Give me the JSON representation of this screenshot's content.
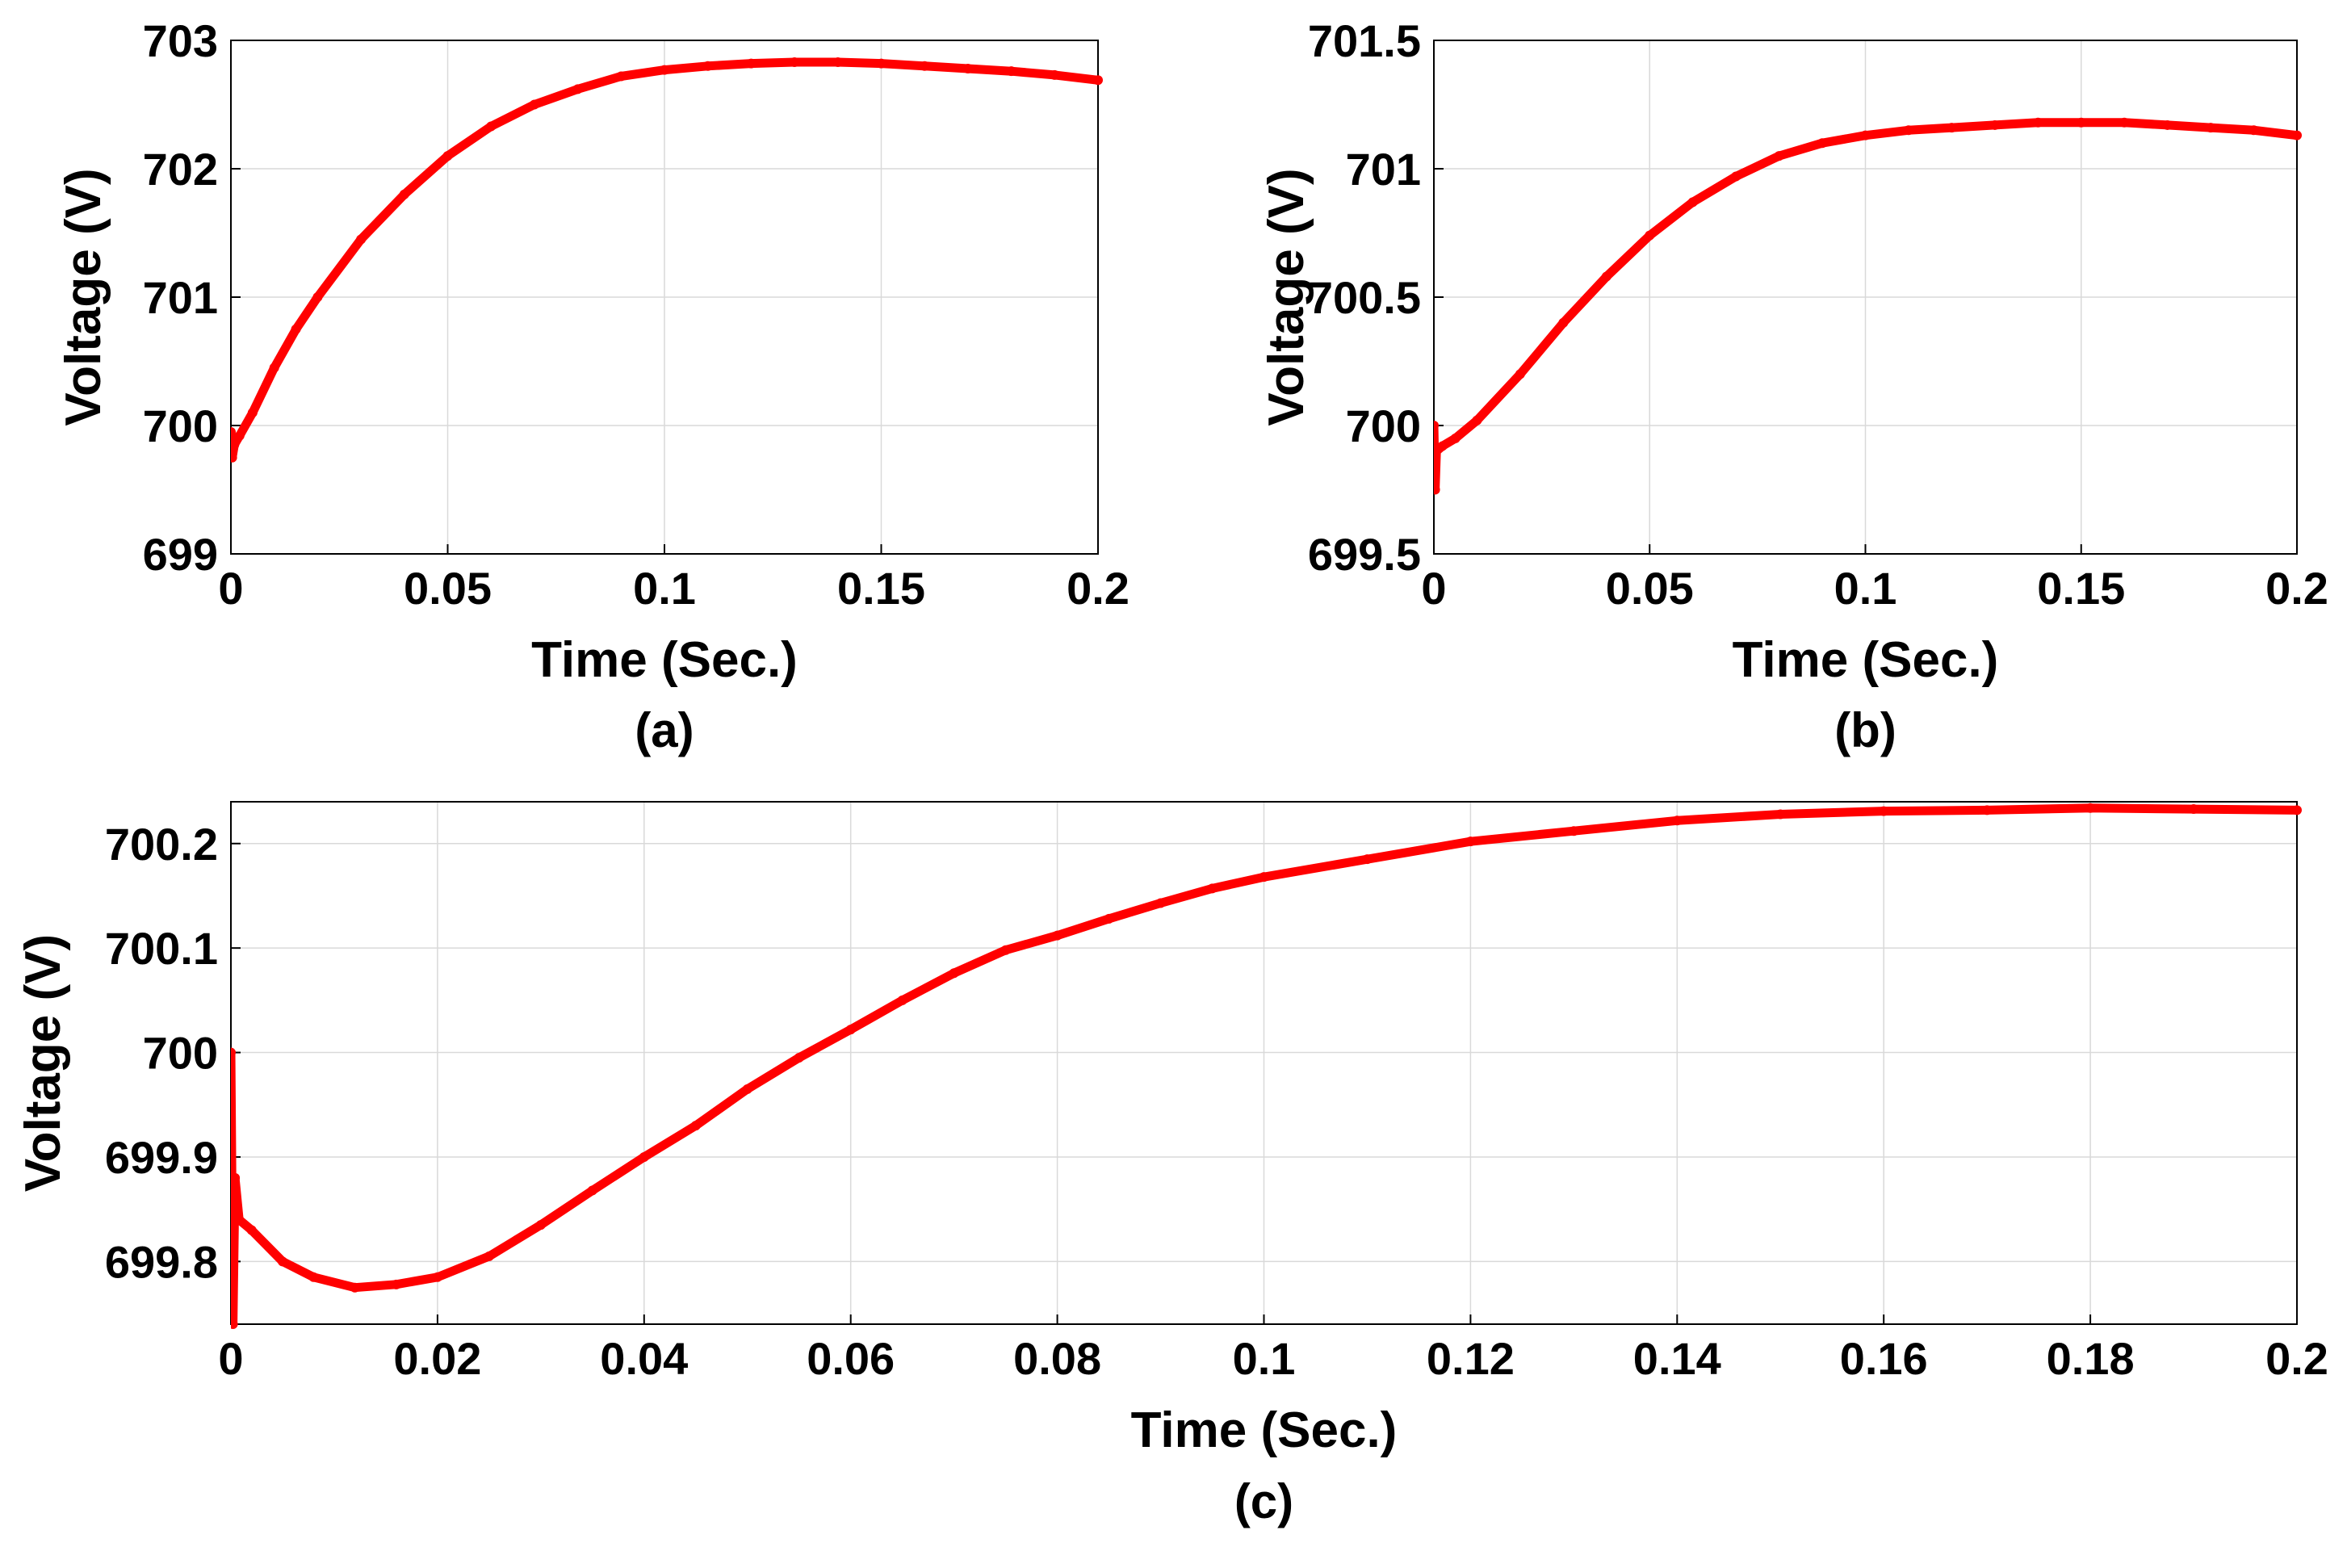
{
  "chart_data": [
    {
      "type": "line",
      "panel": "(a)",
      "caption": "(a)",
      "xlabel": "Time (Sec.)",
      "ylabel": "Voltage (V)",
      "xlim": [
        0,
        0.2
      ],
      "ylim": [
        699,
        703
      ],
      "xticks": [
        "0",
        "0.05",
        "0.1",
        "0.15",
        "0.2"
      ],
      "xtick_values": [
        0,
        0.05,
        0.1,
        0.15,
        0.2
      ],
      "yticks": [
        "699",
        "700",
        "701",
        "702",
        "703"
      ],
      "ytick_values": [
        699,
        700,
        701,
        702,
        703
      ],
      "grid": true,
      "color": "#ff0000",
      "series": [
        {
          "name": "Voltage",
          "x": [
            0,
            0.0003,
            0.0008,
            0.002,
            0.005,
            0.01,
            0.015,
            0.02,
            0.03,
            0.04,
            0.05,
            0.06,
            0.07,
            0.08,
            0.09,
            0.1,
            0.11,
            0.12,
            0.13,
            0.14,
            0.15,
            0.16,
            0.17,
            0.18,
            0.19,
            0.2
          ],
          "y": [
            699.95,
            699.75,
            699.85,
            699.92,
            700.1,
            700.45,
            700.75,
            701.0,
            701.45,
            701.8,
            702.1,
            702.33,
            702.5,
            702.62,
            702.72,
            702.77,
            702.8,
            702.82,
            702.83,
            702.83,
            702.82,
            702.8,
            702.78,
            702.76,
            702.73,
            702.69
          ]
        }
      ]
    },
    {
      "type": "line",
      "panel": "(b)",
      "caption": "(b)",
      "xlabel": "Time (Sec.)",
      "ylabel": "Voltage (V)",
      "xlim": [
        0,
        0.2
      ],
      "ylim": [
        699.5,
        701.5
      ],
      "xticks": [
        "0",
        "0.05",
        "0.1",
        "0.15",
        "0.2"
      ],
      "xtick_values": [
        0,
        0.05,
        0.1,
        0.15,
        0.2
      ],
      "yticks": [
        "699.5",
        "700",
        "700.5",
        "701",
        "701.5"
      ],
      "ytick_values": [
        699.5,
        700,
        700.5,
        701,
        701.5
      ],
      "grid": true,
      "color": "#ff0000",
      "series": [
        {
          "name": "Voltage",
          "x": [
            0,
            0.0003,
            0.0006,
            0.002,
            0.005,
            0.01,
            0.02,
            0.03,
            0.04,
            0.05,
            0.06,
            0.07,
            0.08,
            0.09,
            0.1,
            0.11,
            0.12,
            0.13,
            0.14,
            0.15,
            0.16,
            0.17,
            0.18,
            0.19,
            0.2
          ],
          "y": [
            700.0,
            699.75,
            699.9,
            699.92,
            699.95,
            700.02,
            700.2,
            700.4,
            700.58,
            700.74,
            700.87,
            700.97,
            701.05,
            701.1,
            701.13,
            701.15,
            701.16,
            701.17,
            701.18,
            701.18,
            701.18,
            701.17,
            701.16,
            701.15,
            701.13
          ]
        }
      ]
    },
    {
      "type": "line",
      "panel": "(c)",
      "caption": "(c)",
      "xlabel": "Time (Sec.)",
      "ylabel": "Voltage (V)",
      "xlim": [
        0,
        0.2
      ],
      "ylim": [
        699.74,
        700.24
      ],
      "xticks": [
        "0",
        "0.02",
        "0.04",
        "0.06",
        "0.08",
        "0.1",
        "0.12",
        "0.14",
        "0.16",
        "0.18",
        "0.2"
      ],
      "xtick_values": [
        0,
        0.02,
        0.04,
        0.06,
        0.08,
        0.1,
        0.12,
        0.14,
        0.16,
        0.18,
        0.2
      ],
      "yticks": [
        "699.8",
        "699.9",
        "700",
        "700.1",
        "700.2"
      ],
      "ytick_values": [
        699.8,
        699.9,
        700,
        700.1,
        700.2
      ],
      "grid": true,
      "color": "#ff0000",
      "series": [
        {
          "name": "Voltage",
          "x": [
            0,
            0.0002,
            0.0004,
            0.0008,
            0.002,
            0.005,
            0.008,
            0.012,
            0.016,
            0.02,
            0.025,
            0.03,
            0.035,
            0.04,
            0.045,
            0.05,
            0.055,
            0.06,
            0.065,
            0.07,
            0.075,
            0.08,
            0.085,
            0.09,
            0.095,
            0.1,
            0.11,
            0.12,
            0.13,
            0.14,
            0.15,
            0.16,
            0.17,
            0.18,
            0.19,
            0.2
          ],
          "y": [
            700.0,
            699.74,
            699.88,
            699.84,
            699.83,
            699.8,
            699.785,
            699.775,
            699.778,
            699.785,
            699.805,
            699.835,
            699.868,
            699.9,
            699.93,
            699.965,
            699.995,
            700.022,
            700.05,
            700.076,
            700.098,
            700.112,
            700.128,
            700.143,
            700.157,
            700.168,
            700.185,
            700.202,
            700.212,
            700.222,
            700.228,
            700.231,
            700.232,
            700.234,
            700.233,
            700.232
          ]
        }
      ]
    }
  ]
}
